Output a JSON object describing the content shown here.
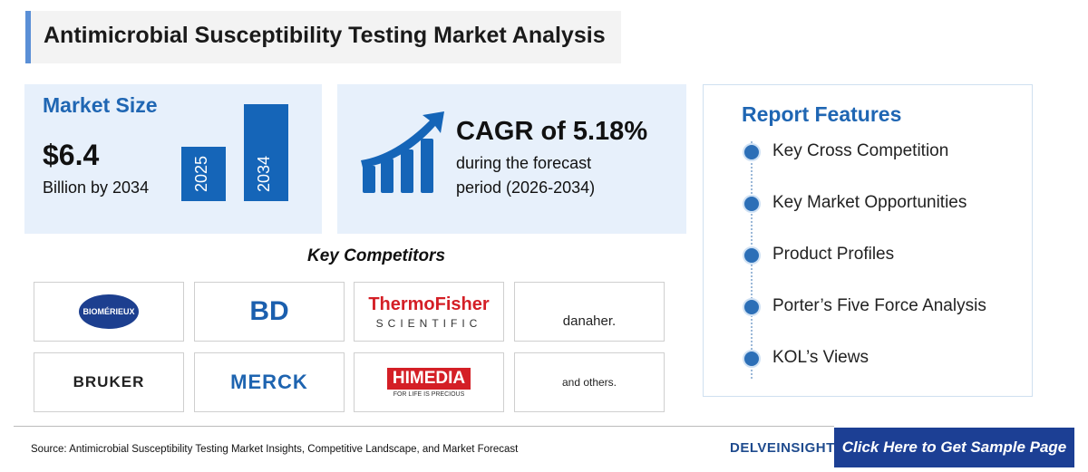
{
  "header": {
    "title": "Antimicrobial Susceptibility Testing Market Analysis"
  },
  "market_size": {
    "heading": "Market Size",
    "value": "$6.4",
    "unit": "Billion by 2034",
    "bars": [
      "2025",
      "2034"
    ]
  },
  "cagr": {
    "headline": "CAGR of 5.18%",
    "text_lines": [
      "during the forecast",
      "period (2026-2034)"
    ]
  },
  "competitors": {
    "heading": "Key Competitors",
    "logos": [
      {
        "name": "BIOMÉRIEUX"
      },
      {
        "name": "BD"
      },
      {
        "name": "ThermoFisher",
        "sub": "SCIENTIFIC"
      },
      {
        "name": "danaher."
      },
      {
        "name": "BRUKER"
      },
      {
        "name": "MERCK"
      },
      {
        "name": "HIMEDIA",
        "sub": "FOR LIFE IS PRECIOUS"
      },
      {
        "name": "and others."
      }
    ]
  },
  "features": {
    "heading": "Report Features",
    "items": [
      "Key Cross Competition",
      "Key Market Opportunities",
      "Product Profiles",
      "Porter’s Five Force Analysis",
      "KOL’s Views"
    ]
  },
  "footer": {
    "source": "Source: Antimicrobial Susceptibility Testing Market Insights, Competitive Landscape, and Market Forecast",
    "brand": "DELVEINSIGHT",
    "cta": "Click Here to Get Sample Page"
  }
}
